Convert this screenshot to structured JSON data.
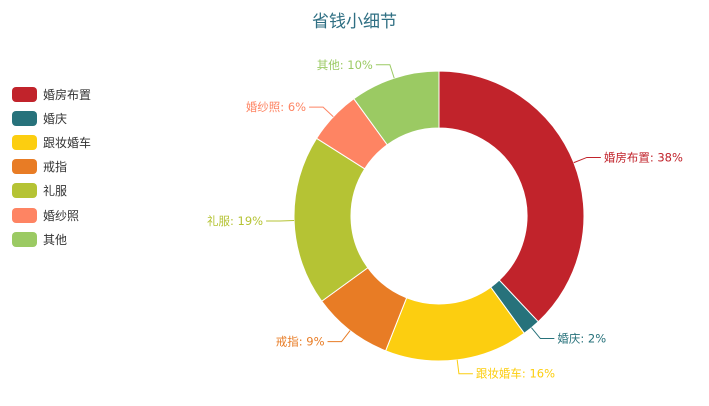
{
  "chart_data": {
    "type": "pie",
    "variant": "donut",
    "title": "省钱小细节",
    "legend_position": "left",
    "categories": [
      "婚房布置",
      "婚庆",
      "跟妆婚车",
      "戒指",
      "礼服",
      "婚纱照",
      "其他"
    ],
    "values": [
      38,
      2,
      16,
      9,
      19,
      6,
      10
    ],
    "labels": [
      "婚房布置: 38%",
      "婚庆: 2%",
      "跟妆婚车: 16%",
      "戒指: 9%",
      "礼服: 19%",
      "婚纱照: 6%",
      "其他: 10%"
    ],
    "colors": [
      "#c1232b",
      "#27727b",
      "#fcce10",
      "#e87c25",
      "#b5c334",
      "#fe8463",
      "#9bca63"
    ]
  }
}
